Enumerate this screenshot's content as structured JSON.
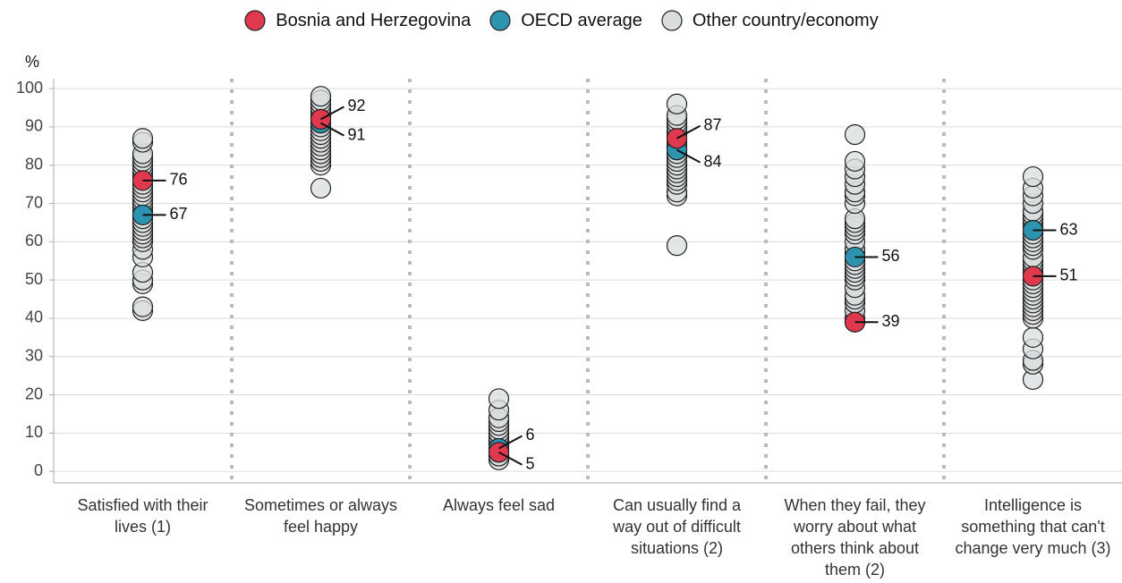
{
  "chart_data": {
    "type": "strip",
    "y_label": "%",
    "categories": [
      "Satisfied with their lives (1)",
      "Sometimes or always feel happy",
      "Always feel sad",
      "Can usually find a way out of difficult situations (2)",
      "When they fail, they worry about what others think about them (2)",
      "Intelligence is something that can't change very much (3)"
    ],
    "series": [
      {
        "name": "Bosnia and Herzegovina",
        "color": "#e0394e",
        "values": [
          76,
          92,
          5,
          87,
          39,
          51
        ],
        "labeled": true
      },
      {
        "name": "OECD average",
        "color": "#2e93ae",
        "values": [
          67,
          91,
          6,
          84,
          56,
          63
        ],
        "labeled": true
      },
      {
        "name": "Other country/economy",
        "color": "#d9dddd",
        "values": [
          [
            42,
            43,
            49,
            50,
            52,
            56,
            58,
            60,
            61,
            62,
            63,
            64,
            65,
            66,
            68,
            69,
            70,
            71,
            72,
            73,
            74,
            75,
            77,
            78,
            79,
            80,
            81,
            82,
            83,
            86,
            87
          ],
          [
            74,
            80,
            81,
            82,
            83,
            84,
            85,
            86,
            87,
            88,
            89,
            90,
            91,
            92,
            93,
            94,
            95,
            96,
            97,
            98
          ],
          [
            3,
            4,
            4,
            5,
            6,
            7,
            7,
            8,
            8,
            9,
            10,
            10,
            11,
            12,
            13,
            14,
            16,
            19
          ],
          [
            59,
            72,
            73,
            75,
            76,
            77,
            78,
            79,
            80,
            81,
            82,
            83,
            84,
            85,
            86,
            88,
            89,
            90,
            91,
            92,
            93,
            96
          ],
          [
            39,
            40,
            42,
            44,
            45,
            46,
            48,
            50,
            51,
            52,
            53,
            54,
            55,
            57,
            58,
            60,
            62,
            63,
            64,
            65,
            66,
            70,
            72,
            73,
            75,
            77,
            79,
            81,
            88
          ],
          [
            24,
            28,
            29,
            32,
            35,
            40,
            41,
            42,
            43,
            44,
            45,
            46,
            47,
            48,
            49,
            50,
            52,
            53,
            54,
            55,
            56,
            58,
            59,
            60,
            61,
            62,
            64,
            65,
            66,
            67,
            68,
            70,
            72,
            74,
            77
          ]
        ],
        "labeled": false
      }
    ],
    "ylim": [
      -3,
      102.6
    ],
    "yticks": [
      0,
      10,
      20,
      30,
      40,
      50,
      60,
      70,
      80,
      90,
      100
    ],
    "grid": true,
    "legend": "top"
  }
}
